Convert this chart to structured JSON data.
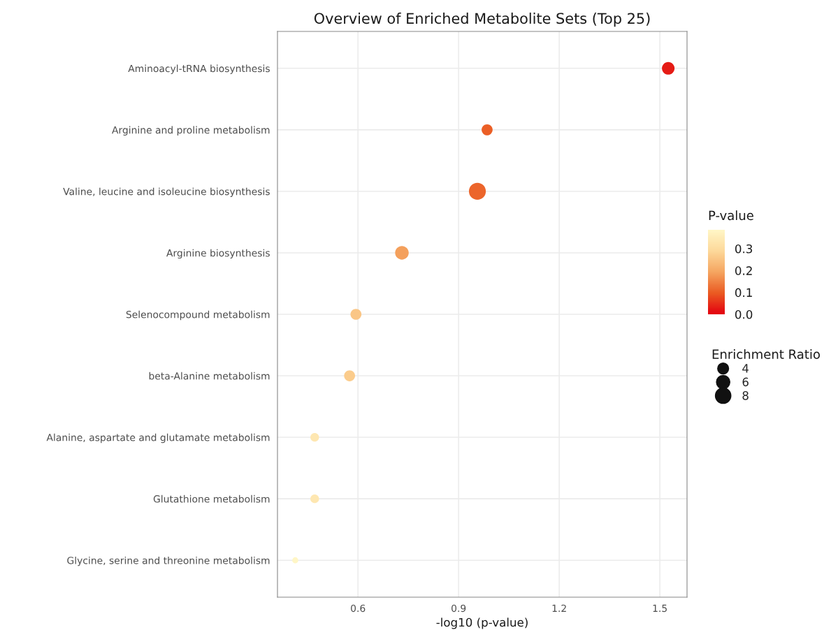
{
  "chart_data": {
    "type": "bubble",
    "title": "Overview of Enriched Metabolite Sets (Top 25)",
    "xlabel": "-log10 (p-value)",
    "orientation": "horizontal",
    "categories": [
      "Aminoacyl-tRNA biosynthesis",
      "Arginine and proline metabolism",
      "Valine, leucine and isoleucine biosynthesis",
      "Arginine biosynthesis",
      "Selenocompound metabolism",
      "beta-Alanine metabolism",
      "Alanine, aspartate and glutamate metabolism",
      "Glutathione metabolism",
      "Glycine, serine and threonine metabolism"
    ],
    "values": [
      1.525,
      0.985,
      0.956,
      0.731,
      0.594,
      0.575,
      0.471,
      0.471,
      0.413
    ],
    "cvalues": [
      0.03,
      0.104,
      0.111,
      0.186,
      0.255,
      0.266,
      0.338,
      0.338,
      0.386
    ],
    "sizes": [
      5.3,
      4.0,
      9.5,
      6.1,
      4.0,
      4.0,
      2.5,
      2.5,
      1.2
    ],
    "size_legend": [
      4,
      6,
      8
    ],
    "legend_title": "Enrichment Ratio",
    "clabel": "P-value",
    "clim": [
      0,
      0.386
    ],
    "cticks": [
      {
        "value": 0,
        "label": "0.0"
      },
      0.1,
      0.2,
      0.3
    ],
    "xlim": [
      0.36,
      1.581
    ],
    "xticks": [
      {
        "value": 0.6,
        "label": "0.6"
      },
      {
        "value": 0.9,
        "label": "0.9"
      },
      {
        "value": 1.2,
        "label": "1.2"
      },
      {
        "value": 1.5,
        "label": "1.5"
      }
    ],
    "grid": true
  }
}
